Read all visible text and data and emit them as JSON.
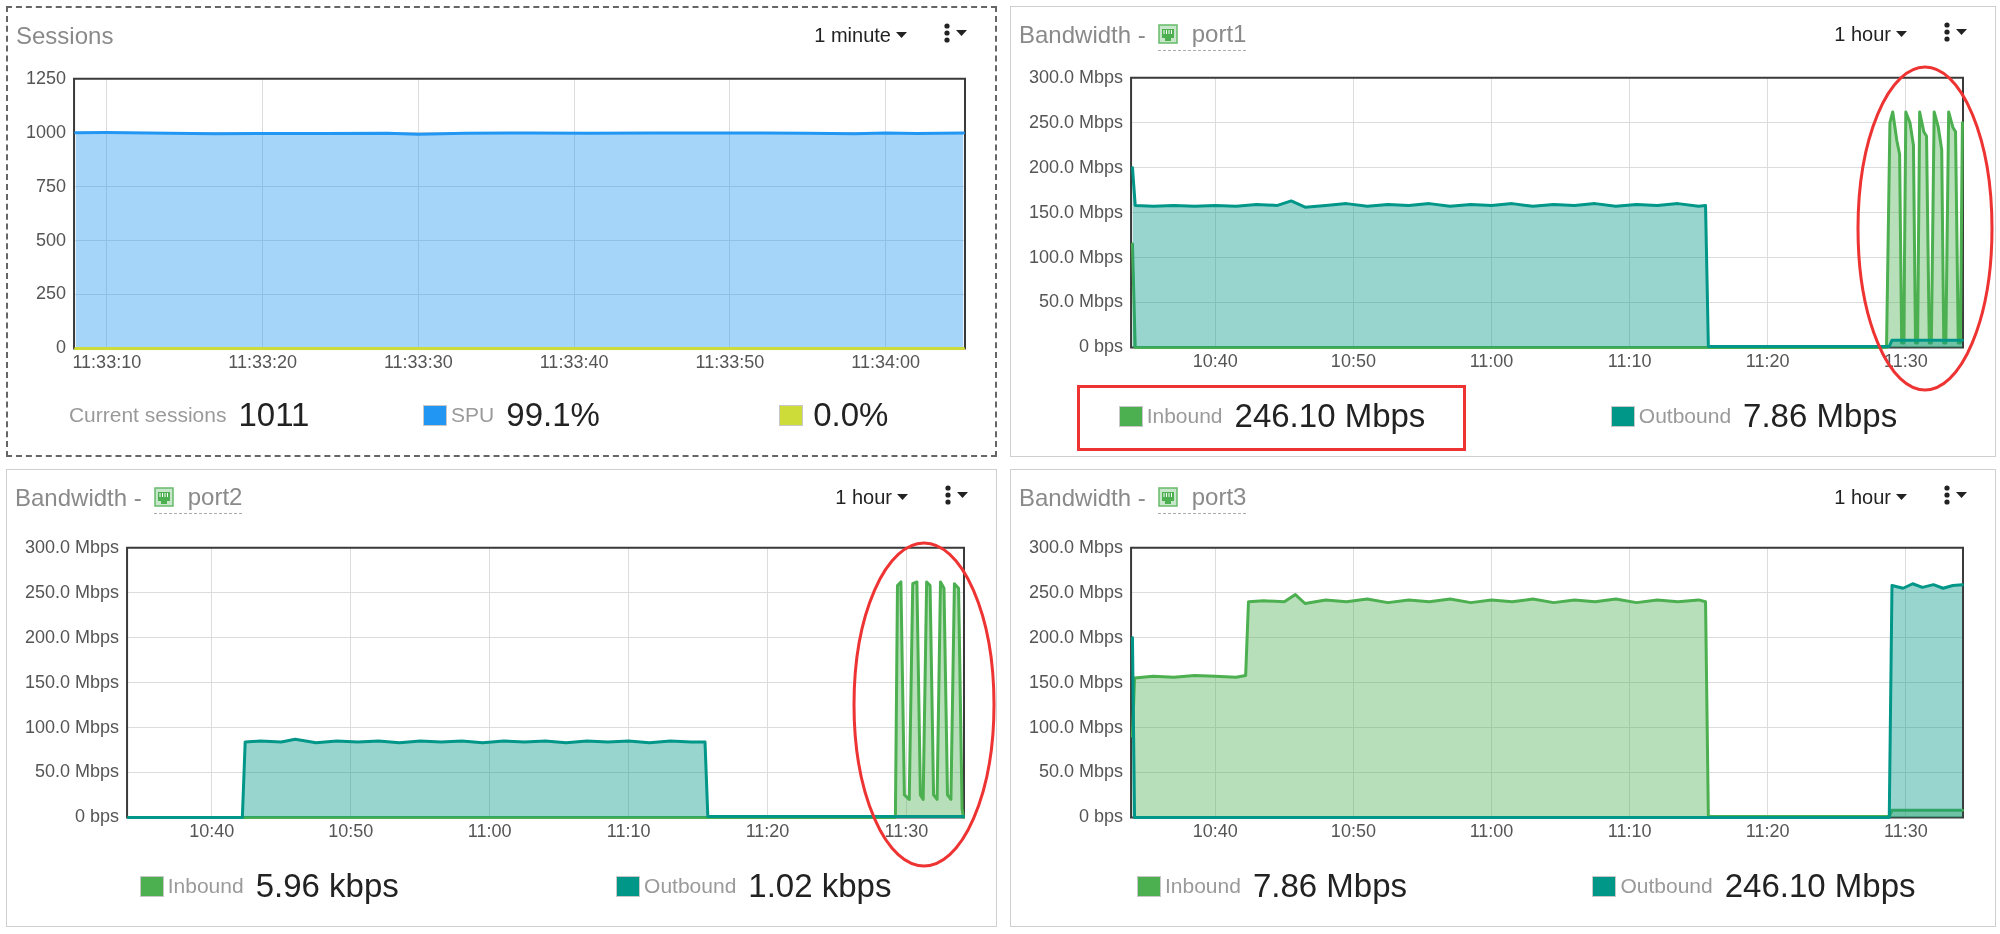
{
  "chart_data": [
    {
      "type": "area",
      "title": "Sessions",
      "annotations": [
        "1 minute",
        "Current sessions",
        "1011",
        "99.1%",
        "0.0%"
      ],
      "legend": "bottom",
      "grid": true,
      "xlim": [
        11.552194,
        11.568083
      ],
      "xticks": [
        {
          "value": 11.552778,
          "label": "11:33:10"
        },
        {
          "value": 11.555556,
          "label": "11:33:20"
        },
        {
          "value": 11.558333,
          "label": "11:33:30"
        },
        {
          "value": 11.561111,
          "label": "11:33:40"
        },
        {
          "value": 11.563889,
          "label": "11:33:50"
        },
        {
          "value": 11.566667,
          "label": "11:34:00"
        }
      ],
      "ylim": [
        0,
        1250
      ],
      "yticks": [
        0,
        250,
        500,
        750,
        1000,
        1250
      ],
      "x": [
        11.552222,
        11.552778,
        11.553889,
        11.554722,
        11.555556,
        11.556667,
        11.557778,
        11.558333,
        11.559167,
        11.560278,
        11.561389,
        11.5625,
        11.563889,
        11.565278,
        11.566111,
        11.566667,
        11.567222,
        11.568056
      ],
      "series": [
        {
          "name": "SPU",
          "color": "#2196f3",
          "values": [
            1000,
            1001,
            997,
            995,
            996,
            996,
            998,
            993,
            997,
            999,
            998,
            999,
            999,
            998,
            995,
            999,
            996,
            999
          ]
        },
        {
          "type": "line",
          "color": "#cddc39",
          "values": [
            0,
            0,
            0,
            0,
            0,
            0,
            0,
            0,
            0,
            0,
            0,
            0,
            0,
            0,
            0,
            0,
            0,
            0
          ]
        }
      ]
    },
    {
      "type": "area",
      "title": "Bandwidth -",
      "subtitle": "port1",
      "annotations": [
        "1 hour",
        "246.10 Mbps",
        "7.86 Mbps"
      ],
      "legend": "bottom",
      "grid": true,
      "xlim": [
        10.565,
        11.569
      ],
      "xticks": [
        {
          "value": 10.6667,
          "label": "10:40"
        },
        {
          "value": 10.8333,
          "label": "10:50"
        },
        {
          "value": 11,
          "label": "11:00"
        },
        {
          "value": 11.1667,
          "label": "11:10"
        },
        {
          "value": 11.3333,
          "label": "11:20"
        },
        {
          "value": 11.5,
          "label": "11:30"
        }
      ],
      "ylim": [
        0,
        300
      ],
      "yticks": [
        {
          "value": 0,
          "label": "0 bps"
        },
        {
          "value": 50,
          "label": "50.0 Mbps"
        },
        {
          "value": 100,
          "label": "100.0 Mbps"
        },
        {
          "value": 150,
          "label": "150.0 Mbps"
        },
        {
          "value": 200,
          "label": "200.0 Mbps"
        },
        {
          "value": 250,
          "label": "250.0 Mbps"
        },
        {
          "value": 300,
          "label": "300.0 Mbps"
        }
      ],
      "series": [
        {
          "name": "Inbound",
          "color": "#4caf50",
          "x": [
            10.5667,
            10.57,
            11.4767,
            11.4808,
            11.4842,
            11.4892,
            11.4925,
            11.495,
            11.4975,
            11.5,
            11.505,
            11.5092,
            11.5117,
            11.5142,
            11.5167,
            11.5217,
            11.525,
            11.5283,
            11.5308,
            11.5342,
            11.5392,
            11.5433,
            11.5458,
            11.5483,
            11.5517,
            11.5567,
            11.56,
            11.5633,
            11.5658,
            11.5683
          ],
          "values": [
            115,
            0,
            0,
            250,
            262,
            230,
            215,
            5,
            5,
            262,
            250,
            225,
            5,
            5,
            262,
            240,
            235,
            5,
            5,
            262,
            245,
            220,
            5,
            5,
            262,
            245,
            240,
            5,
            5,
            250
          ]
        },
        {
          "name": "Outbound",
          "color": "#009688",
          "x": [
            10.5667,
            10.57,
            10.5917,
            10.6167,
            10.6417,
            10.6667,
            10.6917,
            10.7167,
            10.7417,
            10.7583,
            10.775,
            10.8,
            10.825,
            10.85,
            10.875,
            10.9,
            10.925,
            10.95,
            10.975,
            11,
            11.025,
            11.05,
            11.075,
            11.1,
            11.125,
            11.15,
            11.175,
            11.2,
            11.225,
            11.25,
            11.2583,
            11.2617,
            11.48,
            11.4833,
            11.5683
          ],
          "values": [
            200,
            158,
            157,
            158,
            157,
            158,
            157,
            159,
            158,
            163,
            156,
            158,
            160,
            157,
            159,
            158,
            160,
            157,
            159,
            158,
            160,
            157,
            159,
            158,
            160,
            157,
            159,
            158,
            160,
            157,
            158,
            1,
            1,
            8,
            8
          ]
        }
      ]
    },
    {
      "type": "area",
      "title": "Bandwidth -",
      "subtitle": "port2",
      "annotations": [
        "1 hour",
        "5.96 kbps",
        "1.02 kbps"
      ],
      "legend": "bottom",
      "grid": true,
      "xlim": [
        10.565,
        11.569
      ],
      "xticks": [
        {
          "value": 10.6667,
          "label": "10:40"
        },
        {
          "value": 10.8333,
          "label": "10:50"
        },
        {
          "value": 11,
          "label": "11:00"
        },
        {
          "value": 11.1667,
          "label": "11:10"
        },
        {
          "value": 11.3333,
          "label": "11:20"
        },
        {
          "value": 11.5,
          "label": "11:30"
        }
      ],
      "ylim": [
        0,
        300
      ],
      "yticks": [
        {
          "value": 0,
          "label": "0 bps"
        },
        {
          "value": 50,
          "label": "50.0 Mbps"
        },
        {
          "value": 100,
          "label": "100.0 Mbps"
        },
        {
          "value": 150,
          "label": "150.0 Mbps"
        },
        {
          "value": 200,
          "label": "200.0 Mbps"
        },
        {
          "value": 250,
          "label": "250.0 Mbps"
        },
        {
          "value": 300,
          "label": "300.0 Mbps"
        }
      ],
      "series": [
        {
          "name": "Inbound",
          "color": "#4caf50",
          "x": [
            10.5667,
            11.4867,
            11.4892,
            11.4933,
            11.4975,
            11.5033,
            11.5075,
            11.5125,
            11.5167,
            11.52,
            11.5242,
            11.5283,
            11.5325,
            11.5367,
            11.5408,
            11.545,
            11.5492,
            11.5533,
            11.5575,
            11.5625,
            11.5667,
            11.5683
          ],
          "values": [
            0,
            0,
            258,
            262,
            25,
            20,
            260,
            262,
            25,
            20,
            262,
            258,
            25,
            20,
            262,
            255,
            25,
            20,
            260,
            255,
            10,
            0
          ]
        },
        {
          "name": "Outbound",
          "color": "#009688",
          "x": [
            10.5667,
            10.7033,
            10.7067,
            10.725,
            10.75,
            10.7667,
            10.7917,
            10.8167,
            10.8417,
            10.8667,
            10.8917,
            10.9167,
            10.9417,
            10.9667,
            10.9917,
            11.0167,
            11.0417,
            11.0667,
            11.0917,
            11.1167,
            11.1417,
            11.1667,
            11.1917,
            11.2167,
            11.2417,
            11.2583,
            11.2617,
            11.5683
          ],
          "values": [
            0,
            0,
            84,
            85,
            84,
            87,
            83,
            85,
            84,
            85,
            83,
            85,
            84,
            85,
            83,
            85,
            84,
            85,
            83,
            85,
            84,
            85,
            83,
            85,
            84,
            84,
            1,
            1
          ]
        }
      ]
    },
    {
      "type": "area",
      "title": "Bandwidth -",
      "subtitle": "port3",
      "annotations": [
        "1 hour",
        "7.86 Mbps",
        "246.10 Mbps"
      ],
      "legend": "bottom",
      "grid": true,
      "xlim": [
        10.565,
        11.569
      ],
      "xticks": [
        {
          "value": 10.6667,
          "label": "10:40"
        },
        {
          "value": 10.8333,
          "label": "10:50"
        },
        {
          "value": 11,
          "label": "11:00"
        },
        {
          "value": 11.1667,
          "label": "11:10"
        },
        {
          "value": 11.3333,
          "label": "11:20"
        },
        {
          "value": 11.5,
          "label": "11:30"
        }
      ],
      "ylim": [
        0,
        300
      ],
      "yticks": [
        {
          "value": 0,
          "label": "0 bps"
        },
        {
          "value": 50,
          "label": "50.0 Mbps"
        },
        {
          "value": 100,
          "label": "100.0 Mbps"
        },
        {
          "value": 150,
          "label": "150.0 Mbps"
        },
        {
          "value": 200,
          "label": "200.0 Mbps"
        },
        {
          "value": 250,
          "label": "250.0 Mbps"
        },
        {
          "value": 300,
          "label": "300.0 Mbps"
        }
      ],
      "series": [
        {
          "name": "Inbound",
          "color": "#4caf50",
          "x": [
            10.5667,
            10.5692,
            10.5917,
            10.6167,
            10.6417,
            10.6667,
            10.6917,
            10.7033,
            10.7067,
            10.725,
            10.75,
            10.7633,
            10.775,
            10.8,
            10.825,
            10.85,
            10.875,
            10.9,
            10.925,
            10.95,
            10.975,
            11,
            11.025,
            11.05,
            11.075,
            11.1,
            11.125,
            11.15,
            11.175,
            11.2,
            11.225,
            11.25,
            11.2583,
            11.2617,
            11.48,
            11.4833,
            11.5683
          ],
          "values": [
            90,
            155,
            157,
            156,
            158,
            157,
            156,
            158,
            240,
            241,
            240,
            248,
            238,
            242,
            240,
            243,
            239,
            242,
            240,
            243,
            239,
            242,
            240,
            243,
            239,
            242,
            240,
            243,
            239,
            242,
            240,
            242,
            240,
            1,
            1,
            8,
            8
          ]
        },
        {
          "name": "Outbound",
          "color": "#009688",
          "x": [
            10.5667,
            10.5692,
            11.48,
            11.4833,
            11.4967,
            11.5083,
            11.52,
            11.5333,
            11.545,
            11.5567,
            11.5683
          ],
          "values": [
            200,
            0,
            0,
            258,
            255,
            260,
            256,
            259,
            255,
            258,
            259
          ]
        }
      ]
    }
  ]
}
